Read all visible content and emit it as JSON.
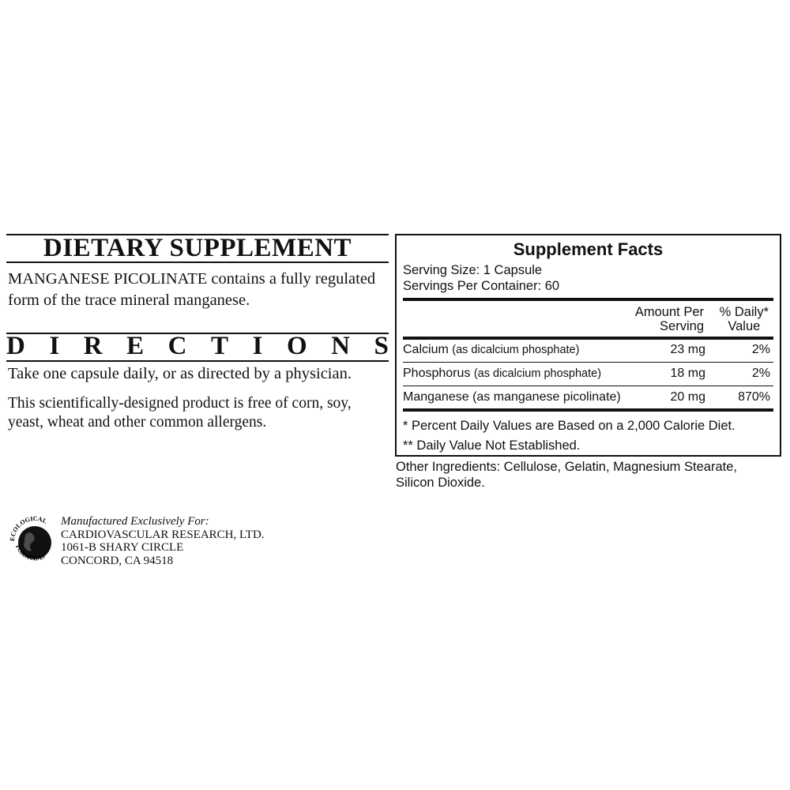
{
  "left": {
    "heading": "DIETARY SUPPLEMENT",
    "intro_bold": "MANGANESE PICOLINATE",
    "intro_line1_rest": " contains a fully regulated",
    "intro_line2": "form of the trace mineral manganese.",
    "directions_letters": [
      "D",
      "I",
      "R",
      "E",
      "C",
      "T",
      "I",
      "O",
      "N",
      "S"
    ],
    "directions_text": "Take one capsule daily, or as directed by a physician.",
    "allergen_line1": "This scientifically-designed product is free of corn, soy,",
    "allergen_line2": "yeast, wheat and other common allergens."
  },
  "manufacturer": {
    "logo_text_top": "ECOLOGICAL",
    "logo_text_bottom": "FORMULAS",
    "label": "Manufactured Exclusively For:",
    "name": "CARDIOVASCULAR RESEARCH, LTD.",
    "address1": "1061-B SHARY CIRCLE",
    "address2": "CONCORD, CA 94518"
  },
  "facts": {
    "title": "Supplement Facts",
    "serving_size": "Serving Size: 1 Capsule",
    "servings_per_container": "Servings Per Container: 60",
    "col_amount_1": "Amount Per",
    "col_amount_2": "Serving",
    "col_dv_1": "% Daily*",
    "col_dv_2": "Value",
    "rows": [
      {
        "name": "Calcium",
        "source": "(as dicalcium phosphate)",
        "amount": "23 mg",
        "dv": "2%"
      },
      {
        "name": "Phosphorus",
        "source": "(as dicalcium phosphate)",
        "amount": "18 mg",
        "dv": "2%"
      },
      {
        "name": "Manganese",
        "source": "(as manganese picolinate)",
        "amount": "20 mg",
        "dv": "870%"
      }
    ],
    "footnote1": "* Percent Daily Values are Based on a 2,000 Calorie Diet.",
    "footnote2": "** Daily Value Not Established."
  },
  "other_ingredients_line1": "Other Ingredients: Cellulose, Gelatin, Magnesium Stearate,",
  "other_ingredients_line2": "Silicon Dioxide."
}
